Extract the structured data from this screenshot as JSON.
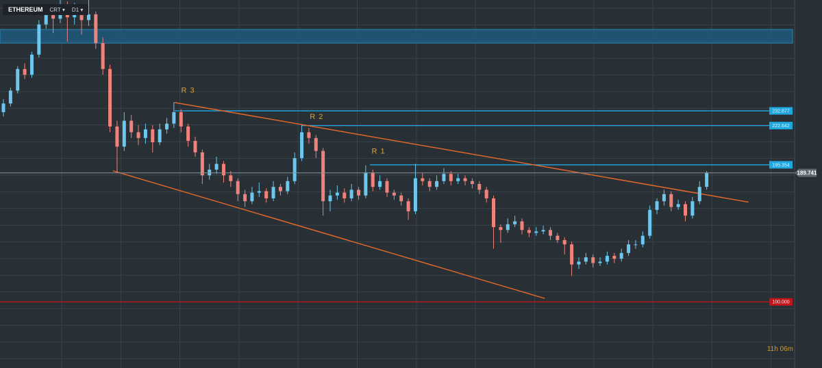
{
  "toolbar": {
    "symbol": "ETHEREUM",
    "mode": "CRT",
    "timeframe": "D1"
  },
  "timer": "11h 06m",
  "chart_data": {
    "type": "candlestick",
    "ylim": [
      54,
      310
    ],
    "up_color": "#6cc7ee",
    "down_color": "#f0827c",
    "open": [
      232,
      238,
      247,
      262,
      258,
      272,
      293,
      301,
      297,
      305,
      298,
      302,
      296,
      300,
      280,
      262,
      222,
      208,
      226,
      218,
      214,
      220,
      211,
      220,
      224,
      232,
      222,
      212,
      204,
      188,
      192,
      196,
      188,
      184,
      175,
      170,
      176,
      177,
      172,
      180,
      177,
      184,
      200,
      218,
      214,
      205,
      170,
      174,
      176,
      172,
      178,
      174,
      190,
      180,
      184,
      176,
      174,
      170,
      163,
      186,
      184,
      180,
      184,
      189,
      184,
      186,
      184,
      182,
      178,
      172,
      152,
      150,
      154,
      156,
      150,
      148,
      149,
      150,
      146,
      143,
      140,
      126,
      128,
      131,
      127,
      128,
      132,
      130,
      134,
      140,
      140,
      146,
      164,
      170,
      175,
      166,
      168,
      160,
      170,
      180
    ],
    "high": [
      241,
      249,
      264,
      266,
      274,
      296,
      306,
      304,
      310,
      309,
      308,
      305,
      310,
      302,
      284,
      265,
      226,
      232,
      230,
      223,
      224,
      223,
      224,
      228,
      239,
      234,
      224,
      215,
      206,
      196,
      201,
      198,
      191,
      186,
      178,
      180,
      183,
      179,
      184,
      182,
      187,
      204,
      223,
      221,
      216,
      207,
      178,
      181,
      179,
      182,
      180,
      195,
      192,
      188,
      186,
      178,
      176,
      172,
      196,
      190,
      186,
      188,
      193,
      191,
      189,
      188,
      186,
      184,
      180,
      174,
      154,
      158,
      160,
      158,
      152,
      152,
      153,
      152,
      148,
      145,
      142,
      131,
      134,
      133,
      131,
      135,
      134,
      137,
      143,
      143,
      149,
      167,
      172,
      178,
      177,
      171,
      170,
      173,
      184,
      191
    ],
    "low": [
      229,
      236,
      245,
      255,
      256,
      270,
      290,
      287,
      294,
      281,
      293,
      286,
      292,
      276,
      258,
      218,
      190,
      205,
      214,
      209,
      210,
      204,
      209,
      217,
      221,
      218,
      208,
      201,
      182,
      185,
      189,
      183,
      180,
      170,
      166,
      168,
      173,
      169,
      170,
      174,
      175,
      182,
      198,
      210,
      200,
      160,
      163,
      171,
      169,
      170,
      171,
      172,
      177,
      178,
      173,
      171,
      167,
      157,
      161,
      181,
      177,
      178,
      182,
      181,
      182,
      181,
      179,
      175,
      169,
      137,
      141,
      148,
      152,
      147,
      145,
      146,
      147,
      143,
      141,
      133,
      118,
      123,
      126,
      124,
      125,
      126,
      127,
      128,
      132,
      137,
      138,
      144,
      161,
      167,
      163,
      164,
      156,
      158,
      168,
      178
    ],
    "close": [
      238,
      247,
      262,
      258,
      272,
      293,
      301,
      297,
      305,
      298,
      302,
      296,
      300,
      280,
      262,
      222,
      208,
      226,
      218,
      214,
      220,
      211,
      220,
      224,
      232,
      222,
      212,
      204,
      188,
      192,
      196,
      188,
      184,
      175,
      170,
      176,
      177,
      172,
      180,
      177,
      184,
      200,
      218,
      214,
      205,
      170,
      174,
      176,
      172,
      178,
      174,
      190,
      180,
      184,
      176,
      174,
      170,
      163,
      186,
      184,
      180,
      184,
      189,
      184,
      186,
      184,
      182,
      178,
      172,
      152,
      150,
      154,
      156,
      150,
      148,
      149,
      150,
      146,
      143,
      140,
      126,
      128,
      131,
      127,
      128,
      132,
      130,
      134,
      140,
      140,
      146,
      164,
      170,
      175,
      166,
      168,
      160,
      170,
      180,
      189.741
    ],
    "zone": {
      "from": 289.5,
      "to": 280,
      "color": "#1e5f86"
    },
    "levels": [
      {
        "price": 232.877,
        "from": 24.1,
        "color": "#1fa8e0"
      },
      {
        "price": 222.642,
        "from": 42,
        "color": "#1fa8e0"
      },
      {
        "price": 195.354,
        "from": 51.6,
        "color": "#1fa8e0"
      },
      {
        "price": 100,
        "price_label": "100.000",
        "from": -1,
        "color": "#c0151a"
      }
    ],
    "trendlines": [
      {
        "x": [
          24.1,
          104.9
        ],
        "y": [
          238.7,
          169.4
        ],
        "color": "#e0662a"
      },
      {
        "x": [
          15.4,
          76.2
        ],
        "y": [
          191.2,
          102.4
        ],
        "color": "#e0662a"
      }
    ],
    "annotations": [
      {
        "text": "R 3",
        "x": 26,
        "y": 246.8
      },
      {
        "text": "R 2",
        "x": 44.1,
        "y": 228.7
      },
      {
        "text": "R 1",
        "x": 52.8,
        "y": 204.5
      }
    ]
  }
}
